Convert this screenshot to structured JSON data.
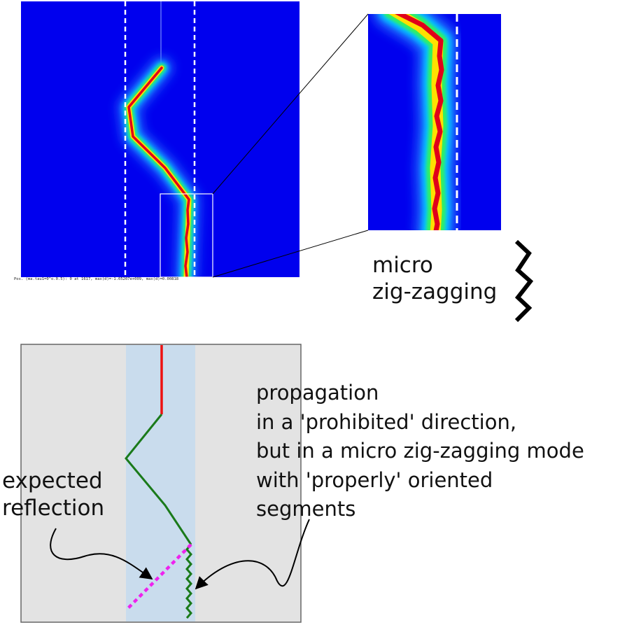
{
  "simulation": {
    "caption": "Pos. (ma.tau1=0^o.0.5): 0 at 1617, max(d)=-1.05207e+009, max(d)=0.00818"
  },
  "annotations": {
    "micro_label": "micro\nzig-zagging",
    "expected_label": "expected\nreflection",
    "propagation_label": "propagation\nin a 'prohibited' direction,\nbut in a micro zig-zagging mode\nwith 'properly' oriented\nsegments"
  },
  "colors": {
    "field_background": "#0000ee",
    "crack_core": "#e0001a",
    "channel_dash": "#ffffff",
    "schematic_background": "#e3e3e3",
    "schematic_band": "#c9dced",
    "initial_crack": "#ee1111",
    "propagated_crack": "#1a7a1a",
    "expected_reflection": "#ee22ee",
    "arrows": "#000000"
  }
}
